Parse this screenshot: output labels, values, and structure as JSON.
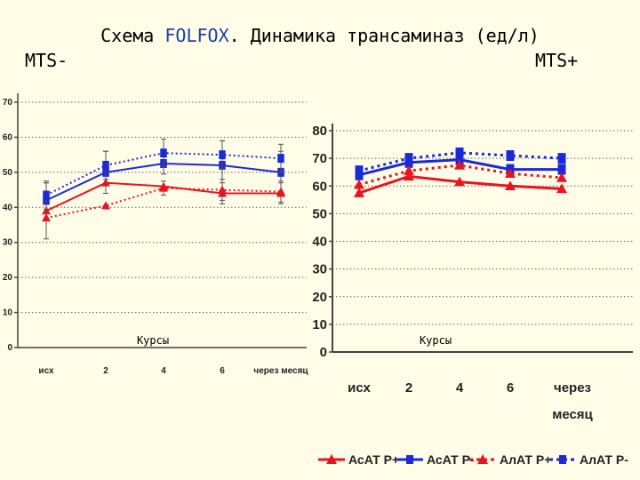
{
  "header": {
    "title_prefix": "Схема ",
    "title_highlight": "FOLFOX",
    "title_suffix": ". Динамика трансаминаз (ед/л)",
    "left_label": "MTS-",
    "right_label": "MTS+"
  },
  "chart_data": [
    {
      "type": "line",
      "panel": "MTS-",
      "categories": [
        "исх",
        "2",
        "4",
        "6",
        "через месяц"
      ],
      "xlabel": "Курсы",
      "ylim": [
        0,
        70
      ],
      "yticks": [
        0,
        10,
        20,
        30,
        40,
        50,
        60,
        70
      ],
      "grid": true,
      "series": [
        {
          "name": "АсАТ Р+",
          "values": [
            39,
            47,
            46,
            44,
            44
          ],
          "color": "#e8141e",
          "style": "solid",
          "marker": "triangle",
          "errors": [
            8,
            0,
            0,
            3,
            3
          ]
        },
        {
          "name": "АсАТ Р-",
          "values": [
            42,
            50,
            52.5,
            52,
            50
          ],
          "color": "#1a2ad8",
          "style": "solid",
          "marker": "square",
          "errors": [
            5,
            6,
            3,
            7,
            6
          ]
        },
        {
          "name": "АлАТ Р+",
          "values": [
            37,
            40.5,
            45.5,
            45,
            44.5
          ],
          "color": "#e8141e",
          "style": "dotted",
          "marker": "triangle",
          "errors": [
            0,
            0,
            2,
            3,
            3
          ]
        },
        {
          "name": "АлАТ Р-",
          "values": [
            43.5,
            52,
            55.5,
            55,
            54
          ],
          "color": "#1a2ad8",
          "style": "dotted",
          "marker": "square",
          "errors": [
            4,
            4,
            4,
            4,
            4
          ]
        }
      ]
    },
    {
      "type": "line",
      "panel": "MTS+",
      "categories": [
        "исх",
        "2",
        "4",
        "6",
        "через месяц"
      ],
      "xlabel": "Курсы",
      "ylim": [
        0,
        80
      ],
      "yticks": [
        0,
        10,
        20,
        30,
        40,
        50,
        60,
        70,
        80
      ],
      "grid": true,
      "legend": "bottom",
      "series": [
        {
          "name": "АсАТ Р+",
          "values": [
            57.5,
            63.5,
            61.5,
            60,
            59
          ],
          "color": "#e8141e",
          "style": "solid",
          "marker": "triangle"
        },
        {
          "name": "АсАТ Р-",
          "values": [
            64,
            68.5,
            69.5,
            66,
            66
          ],
          "color": "#1a2ad8",
          "style": "solid",
          "marker": "square"
        },
        {
          "name": "АлАТ Р+",
          "values": [
            60.5,
            65.5,
            67.5,
            64.5,
            63
          ],
          "color": "#e8141e",
          "style": "dotted",
          "marker": "triangle"
        },
        {
          "name": "АлАТ Р-",
          "values": [
            65.5,
            70,
            72,
            71,
            70
          ],
          "color": "#1a2ad8",
          "style": "dotted",
          "marker": "square"
        }
      ]
    }
  ]
}
